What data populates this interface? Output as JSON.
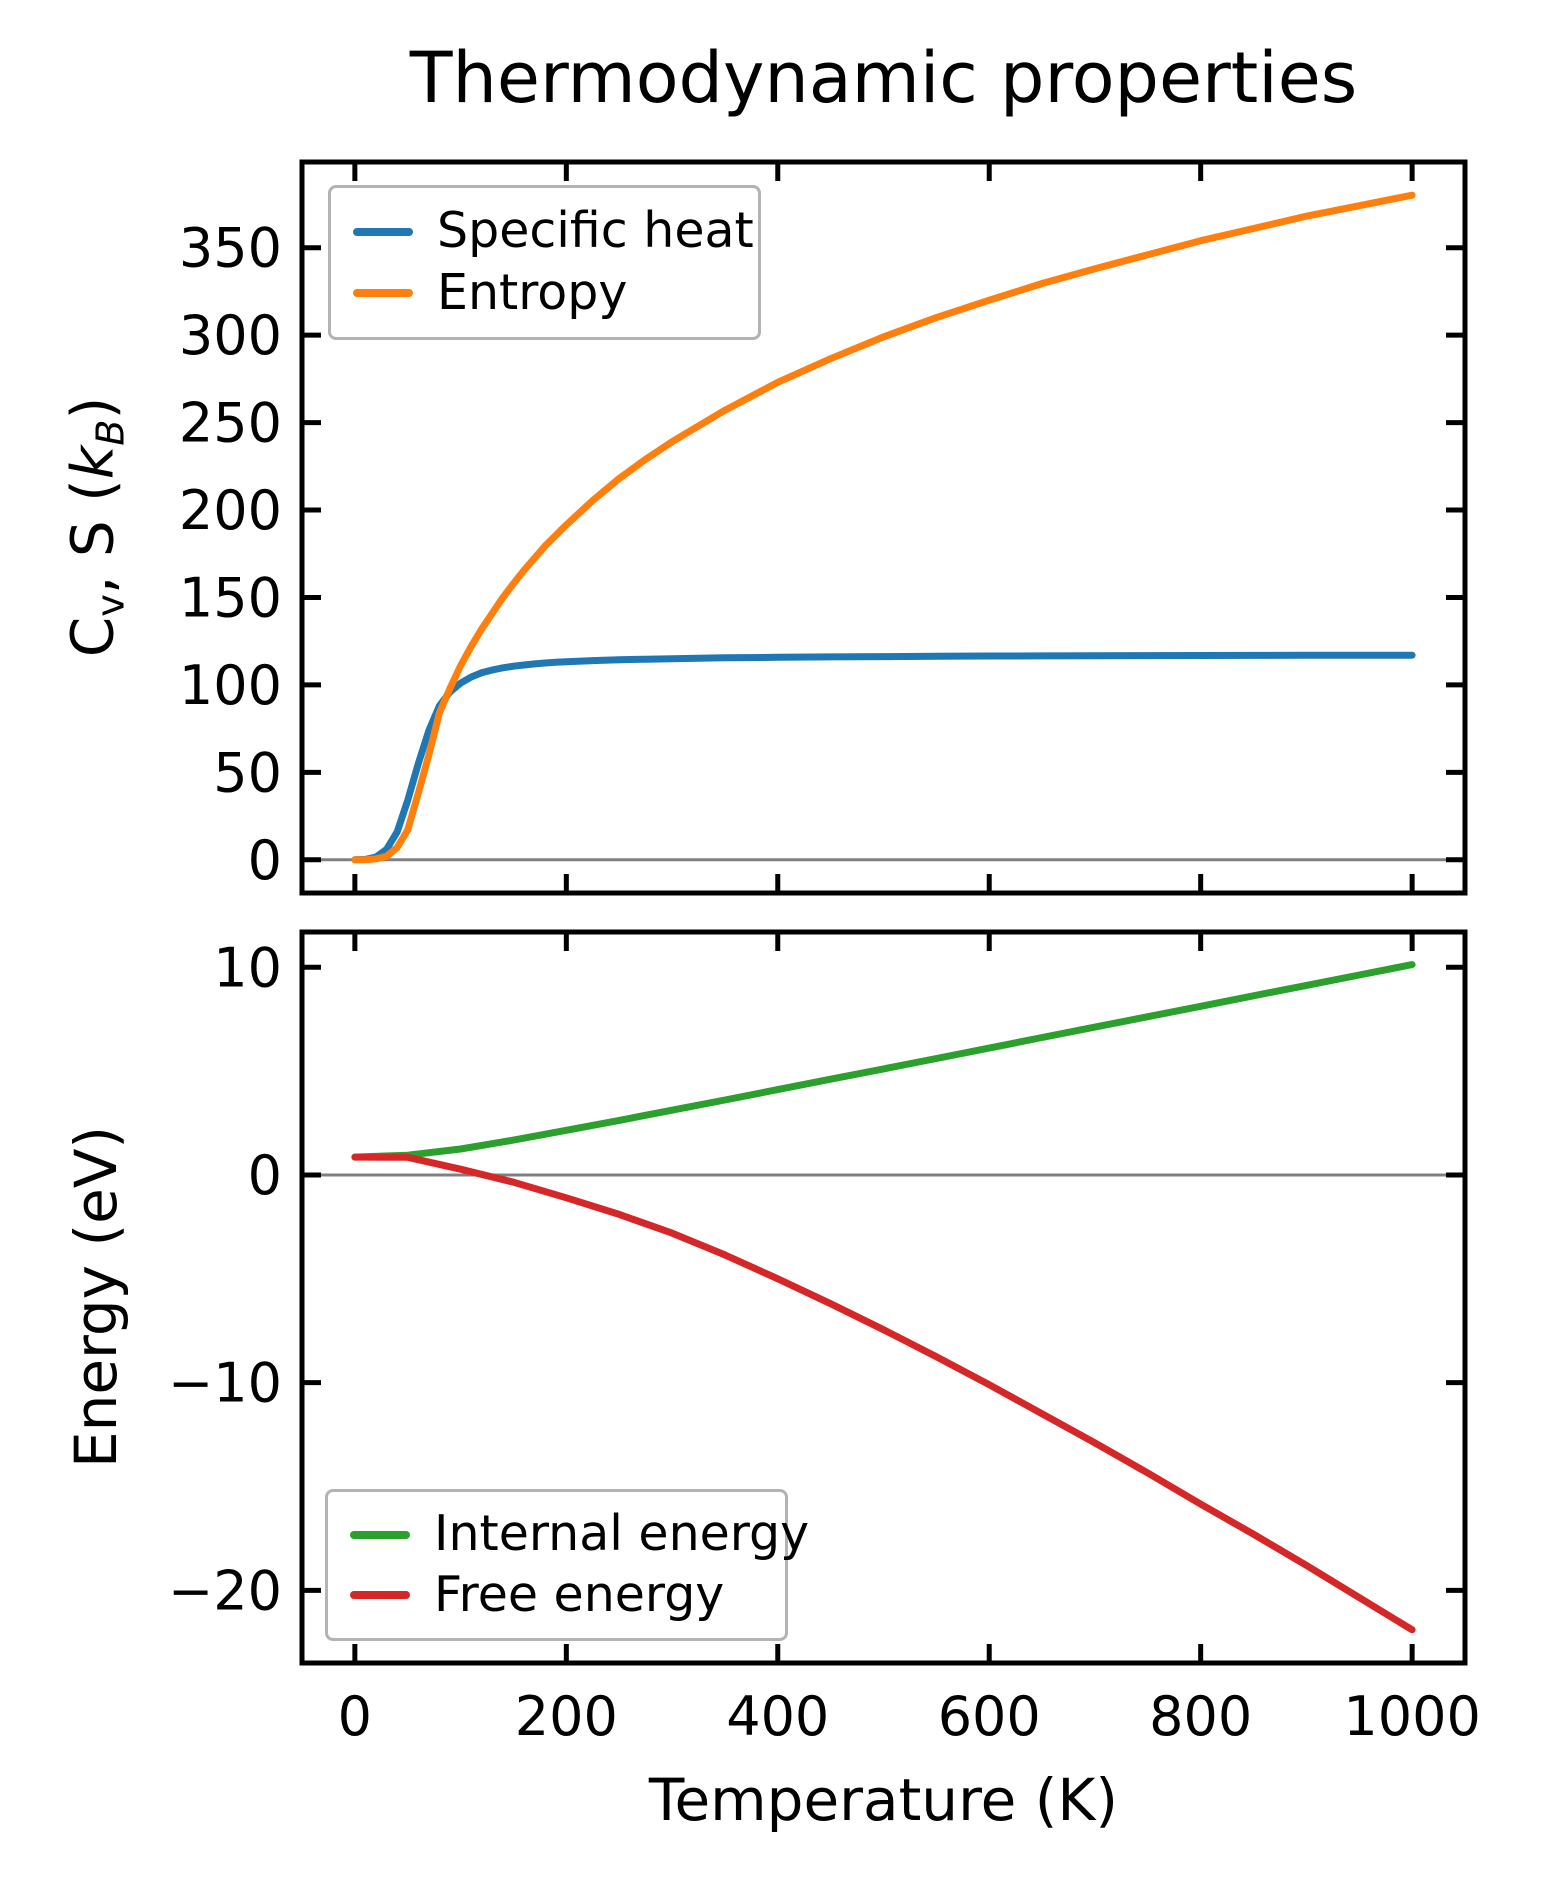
{
  "figure": {
    "background": "#ffffff",
    "spine_color": "#000000",
    "tick_label_color": "#000000"
  },
  "chart_data": [
    {
      "type": "line",
      "title": "Thermodynamic properties",
      "ylabel": "Cv, S (kB)",
      "ylabel_rich": [
        {
          "t": "C"
        },
        {
          "t": "v",
          "sub": true
        },
        {
          "t": ", S ("
        },
        {
          "t": "k",
          "italic": true
        },
        {
          "t": "B",
          "sub": true,
          "italic": true
        },
        {
          "t": ")"
        }
      ],
      "xlabel": "",
      "xlim": [
        -50,
        1050
      ],
      "ylim": [
        -19,
        399
      ],
      "xticks": {
        "values": [
          0,
          200,
          400,
          600,
          800,
          1000
        ],
        "labels": null
      },
      "yticks": {
        "values": [
          0,
          50,
          100,
          150,
          200,
          250,
          300,
          350
        ],
        "labels": [
          "0",
          "50",
          "100",
          "150",
          "200",
          "250",
          "300",
          "350"
        ]
      },
      "zero_line": true,
      "zero_line_color": "#808080",
      "legend": {
        "position": "upper-left",
        "border_color": "#b3b3b3",
        "entries": [
          {
            "label": "Specific heat",
            "color": "#1f77b4"
          },
          {
            "label": "Entropy",
            "color": "#ff7f0e"
          }
        ]
      },
      "x": [
        0,
        10,
        20,
        30,
        40,
        50,
        60,
        70,
        80,
        90,
        100,
        110,
        120,
        130,
        140,
        150,
        160,
        170,
        180,
        190,
        200,
        225,
        250,
        275,
        300,
        350,
        400,
        450,
        500,
        550,
        600,
        650,
        700,
        750,
        800,
        850,
        900,
        950,
        1000
      ],
      "series": [
        {
          "name": "Specific heat",
          "color": "#1f77b4",
          "y": [
            0,
            0.2,
            1.5,
            6,
            16,
            34,
            55,
            74,
            88,
            96,
            101,
            104.5,
            107,
            108.5,
            109.8,
            110.7,
            111.4,
            112,
            112.5,
            112.9,
            113.2,
            113.9,
            114.4,
            114.7,
            115,
            115.5,
            115.8,
            116,
            116.2,
            116.35,
            116.5,
            116.6,
            116.7,
            116.75,
            116.8,
            116.85,
            116.9,
            116.95,
            117
          ]
        },
        {
          "name": "Entropy",
          "color": "#ff7f0e",
          "y": [
            0,
            0.05,
            0.5,
            2,
            7,
            17,
            38,
            60,
            84,
            98,
            111,
            122,
            132,
            141,
            150,
            158,
            165.5,
            172.5,
            179.5,
            185.5,
            191.5,
            205.5,
            218,
            229,
            239,
            257,
            273,
            286.5,
            299,
            310,
            320,
            329.5,
            338,
            346,
            354,
            361,
            368,
            374,
            380
          ]
        }
      ]
    },
    {
      "type": "line",
      "title": "",
      "ylabel": "Energy (eV)",
      "ylabel_rich": [
        {
          "t": "Energy (eV)"
        }
      ],
      "xlabel": "Temperature (K)",
      "xlim": [
        -50,
        1050
      ],
      "ylim": [
        -23.5,
        11.7
      ],
      "xticks": {
        "values": [
          0,
          200,
          400,
          600,
          800,
          1000
        ],
        "labels": [
          "0",
          "200",
          "400",
          "600",
          "800",
          "1000"
        ]
      },
      "yticks": {
        "values": [
          10,
          0,
          -10,
          -20
        ],
        "labels": [
          "10",
          "0",
          "−10",
          "−20"
        ]
      },
      "zero_line": true,
      "zero_line_color": "#808080",
      "legend": {
        "position": "lower-left",
        "border_color": "#b3b3b3",
        "entries": [
          {
            "label": "Internal energy",
            "color": "#2ca02c"
          },
          {
            "label": "Free energy",
            "color": "#d62728"
          }
        ]
      },
      "x": [
        0,
        50,
        100,
        150,
        200,
        250,
        300,
        350,
        400,
        450,
        500,
        550,
        600,
        650,
        700,
        750,
        800,
        850,
        900,
        950,
        1000
      ],
      "series": [
        {
          "name": "Internal energy",
          "color": "#2ca02c",
          "y": [
            0.86,
            0.95,
            1.25,
            1.68,
            2.15,
            2.63,
            3.12,
            3.61,
            4.11,
            4.61,
            5.11,
            5.61,
            6.11,
            6.62,
            7.12,
            7.62,
            8.12,
            8.63,
            9.13,
            9.63,
            10.13
          ]
        },
        {
          "name": "Free energy",
          "color": "#d62728",
          "y": [
            0.86,
            0.85,
            0.28,
            -0.35,
            -1.1,
            -1.9,
            -2.8,
            -3.85,
            -5.0,
            -6.2,
            -7.45,
            -8.75,
            -10.1,
            -11.5,
            -12.9,
            -14.35,
            -15.85,
            -17.3,
            -18.8,
            -20.35,
            -21.9
          ]
        }
      ]
    }
  ]
}
